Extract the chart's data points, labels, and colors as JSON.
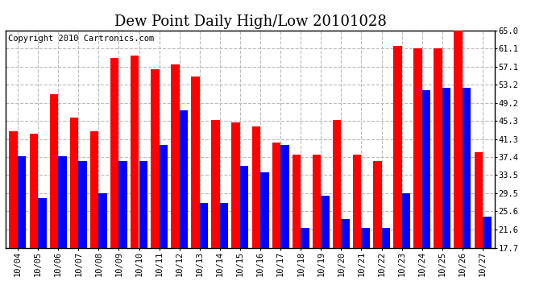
{
  "title": "Dew Point Daily High/Low 20101028",
  "copyright": "Copyright 2010 Cartronics.com",
  "dates": [
    "10/04",
    "10/05",
    "10/06",
    "10/07",
    "10/08",
    "10/09",
    "10/10",
    "10/11",
    "10/12",
    "10/13",
    "10/14",
    "10/15",
    "10/16",
    "10/17",
    "10/18",
    "10/19",
    "10/20",
    "10/21",
    "10/22",
    "10/23",
    "10/24",
    "10/25",
    "10/26",
    "10/27"
  ],
  "highs": [
    43.0,
    42.5,
    51.0,
    46.0,
    43.0,
    59.0,
    59.5,
    56.5,
    57.5,
    55.0,
    45.5,
    45.0,
    44.0,
    40.5,
    38.0,
    38.0,
    45.5,
    38.0,
    36.5,
    61.5,
    61.0,
    61.0,
    65.0,
    38.5
  ],
  "lows": [
    37.5,
    28.5,
    37.5,
    36.5,
    29.5,
    36.5,
    36.5,
    40.0,
    47.5,
    27.5,
    27.5,
    35.5,
    34.0,
    40.0,
    22.0,
    29.0,
    24.0,
    22.0,
    22.0,
    29.5,
    52.0,
    52.5,
    52.5,
    24.5
  ],
  "high_color": "#FF0000",
  "low_color": "#0000FF",
  "background_color": "#FFFFFF",
  "grid_color": "#BBBBBB",
  "ymin": 17.7,
  "ymax": 65.0,
  "yticks": [
    17.7,
    21.6,
    25.6,
    29.5,
    33.5,
    37.4,
    41.3,
    45.3,
    49.2,
    53.2,
    57.1,
    61.1,
    65.0
  ],
  "title_fontsize": 13,
  "copyright_fontsize": 7.5,
  "tick_fontsize": 7.5,
  "bar_width": 0.42
}
